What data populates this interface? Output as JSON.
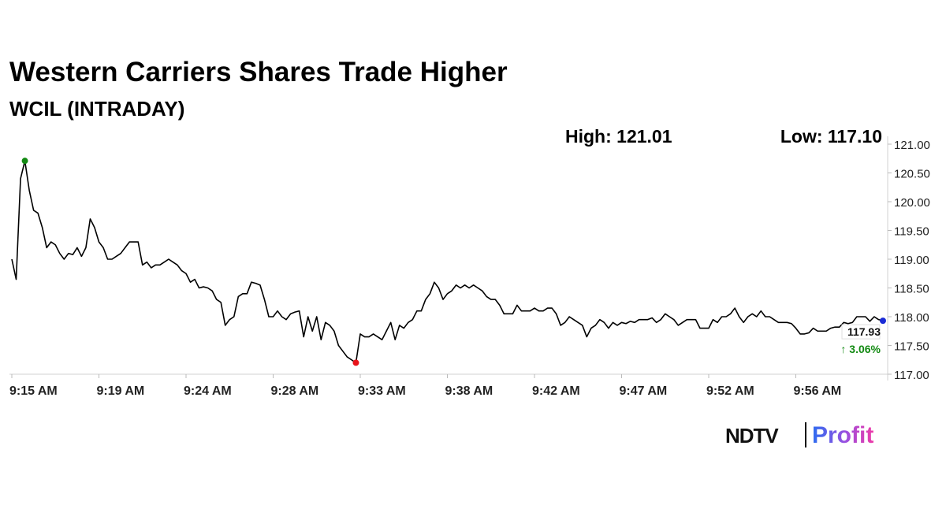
{
  "chart_data": {
    "type": "line",
    "title": "Western Carriers Shares Trade Higher",
    "subtitle": "WCIL (INTRADAY)",
    "high_text": "High: 121.01",
    "low_text": "Low: 117.10",
    "last_label": "117.93",
    "change_label": "↑ 3.06%",
    "color": "#000000",
    "high_color": "#138a13",
    "low_color": "#e8141a",
    "last_color": "#1a2bd6",
    "change_color": "#138a13",
    "high_index": 3,
    "low_index": 79,
    "ylim": [
      117,
      121
    ],
    "yticks": [
      {
        "value": 117,
        "label": "117.00"
      },
      {
        "value": 117.5,
        "label": "117.50"
      },
      {
        "value": 118,
        "label": "118.00"
      },
      {
        "value": 118.5,
        "label": "118.50"
      },
      {
        "value": 119,
        "label": "119.00"
      },
      {
        "value": 119.5,
        "label": "119.50"
      },
      {
        "value": 120,
        "label": "120.00"
      },
      {
        "value": 120.5,
        "label": "120.50"
      },
      {
        "value": 121,
        "label": "121.00"
      }
    ],
    "categories": [
      "9:15 AM",
      null,
      null,
      null,
      null,
      null,
      null,
      null,
      null,
      null,
      null,
      null,
      null,
      null,
      null,
      null,
      null,
      null,
      null,
      null,
      "9:19 AM",
      null,
      null,
      null,
      null,
      null,
      null,
      null,
      null,
      null,
      null,
      null,
      null,
      null,
      null,
      null,
      null,
      null,
      null,
      null,
      "9:24 AM",
      null,
      null,
      null,
      null,
      null,
      null,
      null,
      null,
      null,
      null,
      null,
      null,
      null,
      null,
      null,
      null,
      null,
      null,
      null,
      "9:28 AM",
      null,
      null,
      null,
      null,
      null,
      null,
      null,
      null,
      null,
      null,
      null,
      null,
      null,
      null,
      null,
      null,
      null,
      null,
      null,
      "9:33 AM",
      null,
      null,
      null,
      null,
      null,
      null,
      null,
      null,
      null,
      null,
      null,
      null,
      null,
      null,
      null,
      null,
      null,
      null,
      null,
      "9:38 AM",
      null,
      null,
      null,
      null,
      null,
      null,
      null,
      null,
      null,
      null,
      null,
      null,
      null,
      null,
      null,
      null,
      null,
      null,
      null,
      "9:42 AM",
      null,
      null,
      null,
      null,
      null,
      null,
      null,
      null,
      null,
      null,
      null,
      null,
      null,
      null,
      null,
      null,
      null,
      null,
      null,
      "9:47 AM",
      null,
      null,
      null,
      null,
      null,
      null,
      null,
      null,
      null,
      null,
      null,
      null,
      null,
      null,
      null,
      null,
      null,
      null,
      null,
      "9:52 AM",
      null,
      null,
      null,
      null,
      null,
      null,
      null,
      null,
      null,
      null,
      null,
      null,
      null,
      null,
      null,
      null,
      null,
      null,
      null,
      "9:56 AM",
      null,
      null,
      null,
      null,
      null,
      null,
      null,
      null,
      null,
      null,
      null,
      null,
      null,
      null,
      null,
      null,
      null,
      null,
      null,
      null
    ],
    "values": [
      119.0,
      118.65,
      120.4,
      120.71,
      120.2,
      119.85,
      119.8,
      119.55,
      119.2,
      119.3,
      119.25,
      119.1,
      119.0,
      119.1,
      119.08,
      119.2,
      119.05,
      119.2,
      119.7,
      119.55,
      119.3,
      119.2,
      119.0,
      119.0,
      119.05,
      119.1,
      119.2,
      119.3,
      119.3,
      119.3,
      118.9,
      118.95,
      118.85,
      118.9,
      118.9,
      118.95,
      119.0,
      118.95,
      118.9,
      118.8,
      118.75,
      118.6,
      118.65,
      118.5,
      118.52,
      118.5,
      118.45,
      118.3,
      118.25,
      117.85,
      117.95,
      118.0,
      118.35,
      118.4,
      118.4,
      118.6,
      118.58,
      118.55,
      118.3,
      118.0,
      118.0,
      118.1,
      118.0,
      117.95,
      118.05,
      118.08,
      118.1,
      117.65,
      118.0,
      117.75,
      118.0,
      117.6,
      117.9,
      117.85,
      117.75,
      117.5,
      117.4,
      117.3,
      117.25,
      117.2,
      117.7,
      117.65,
      117.65,
      117.7,
      117.65,
      117.6,
      117.75,
      117.9,
      117.6,
      117.85,
      117.8,
      117.9,
      117.95,
      118.1,
      118.1,
      118.3,
      118.4,
      118.6,
      118.5,
      118.3,
      118.4,
      118.45,
      118.55,
      118.5,
      118.55,
      118.5,
      118.55,
      118.5,
      118.45,
      118.35,
      118.3,
      118.3,
      118.2,
      118.05,
      118.05,
      118.05,
      118.2,
      118.1,
      118.1,
      118.1,
      118.15,
      118.1,
      118.1,
      118.15,
      118.15,
      118.05,
      117.85,
      117.9,
      118.0,
      117.95,
      117.9,
      117.85,
      117.65,
      117.8,
      117.85,
      117.95,
      117.9,
      117.8,
      117.9,
      117.85,
      117.9,
      117.88,
      117.92,
      117.9,
      117.95,
      117.95,
      117.95,
      117.98,
      117.9,
      117.95,
      118.05,
      118.0,
      117.95,
      117.85,
      117.9,
      117.95,
      117.95,
      117.95,
      117.8,
      117.8,
      117.8,
      117.95,
      117.9,
      118.0,
      118.0,
      118.05,
      118.15,
      118.0,
      117.9,
      118.0,
      118.05,
      118.0,
      118.1,
      118.0,
      118.0,
      117.95,
      117.9,
      117.9,
      117.9,
      117.88,
      117.8,
      117.7,
      117.7,
      117.72,
      117.8,
      117.75,
      117.75,
      117.75,
      117.8,
      117.82,
      117.82,
      117.9,
      117.88,
      117.9,
      118.0,
      118.0,
      118.0,
      117.92,
      118.0,
      117.95,
      117.93
    ]
  },
  "brand": {
    "left": "NDTV",
    "right": "Profit"
  }
}
